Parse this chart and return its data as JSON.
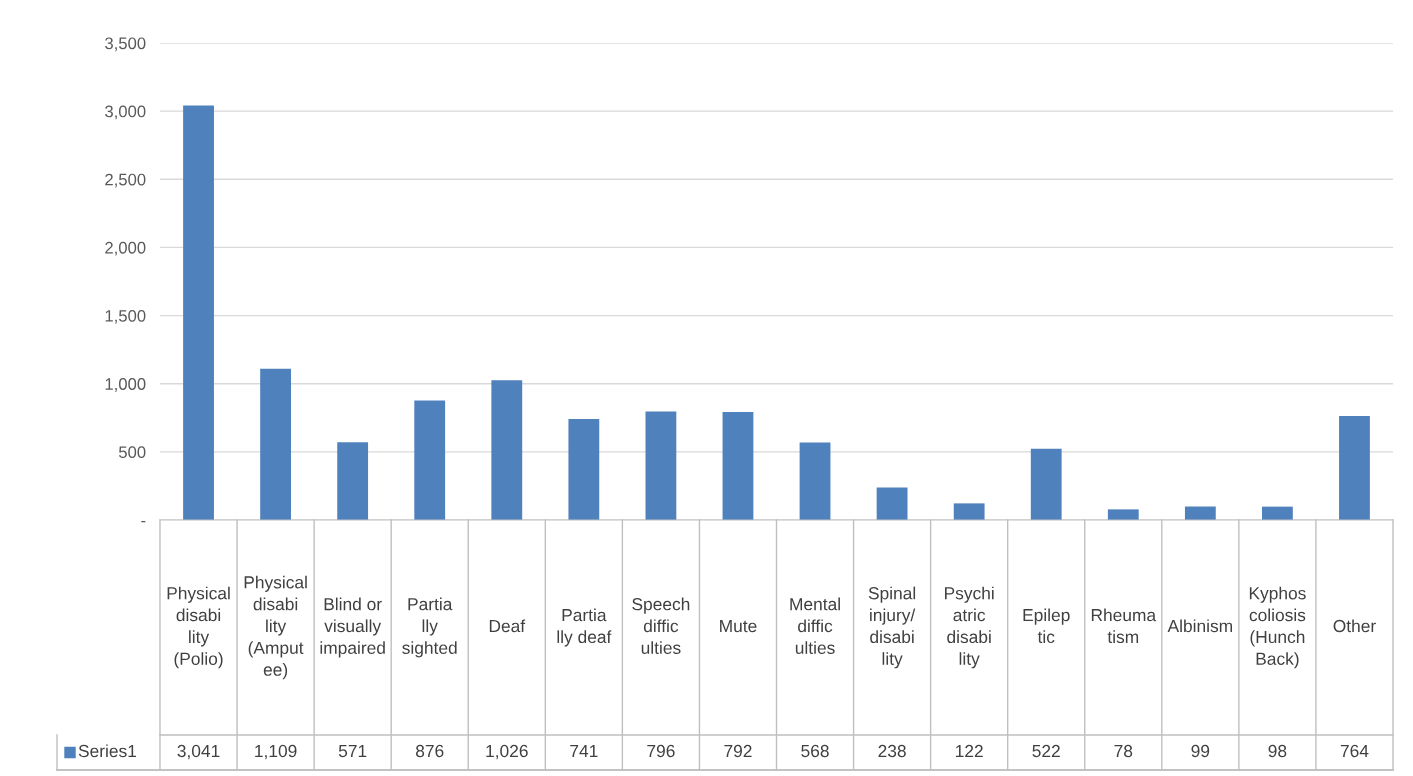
{
  "chart_data": {
    "type": "bar",
    "categories": [
      "Physical disability (Polio)",
      "Physical disability (Amputee)",
      "Blind or visually impaired",
      "Partially sighted",
      "Deaf",
      "Partially deaf",
      "Speech difficulties",
      "Mute",
      "Mental difficulties",
      "Spinal injury/ disability",
      "Psychiatric disability",
      "Epileptic",
      "Rheumatism",
      "Albinism",
      "Kyphoscoliosis (Hunch Back)",
      "Other"
    ],
    "series": [
      {
        "name": "Series1",
        "color": "#4f81bd",
        "values": [
          3041,
          1109,
          571,
          876,
          1026,
          741,
          796,
          792,
          568,
          238,
          122,
          522,
          78,
          99,
          98,
          764
        ],
        "value_labels": [
          "3,041",
          "1,109",
          "571",
          "876",
          "1,026",
          "741",
          "796",
          "792",
          "568",
          "238",
          "122",
          "522",
          "78",
          "99",
          "98",
          "764"
        ]
      }
    ],
    "ylim": [
      0,
      3500
    ],
    "yticks": [
      {
        "value": 0,
        "label": "-"
      },
      {
        "value": 500,
        "label": "500"
      },
      {
        "value": 1000,
        "label": "1,000"
      },
      {
        "value": 1500,
        "label": "1,500"
      },
      {
        "value": 2000,
        "label": "2,000"
      },
      {
        "value": 2500,
        "label": "2,500"
      },
      {
        "value": 3000,
        "label": "3,000"
      },
      {
        "value": 3500,
        "label": "3,500"
      }
    ],
    "grid": "y",
    "legend": "bottom left"
  }
}
